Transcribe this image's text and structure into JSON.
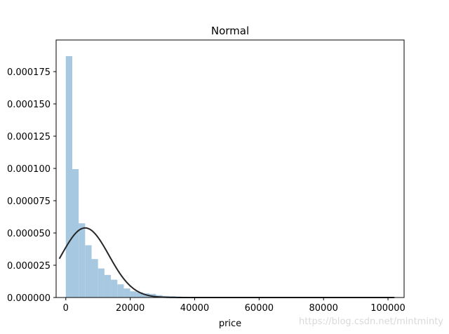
{
  "chart_data": {
    "type": "bar",
    "title": "Normal",
    "xlabel": "price",
    "ylabel": "",
    "xlim": [
      -3000,
      105000
    ],
    "ylim": [
      0,
      0.0001995
    ],
    "x_ticks": [
      0,
      20000,
      40000,
      60000,
      80000,
      100000
    ],
    "x_tick_labels": [
      "0",
      "20000",
      "40000",
      "60000",
      "80000",
      "100000"
    ],
    "y_ticks": [
      0,
      2.5e-05,
      5e-05,
      7.5e-05,
      0.0001,
      0.000125,
      0.00015,
      0.000175
    ],
    "y_tick_labels": [
      "0.000000",
      "0.000025",
      "0.000050",
      "0.000075",
      "0.000100",
      "0.000125",
      "0.000150",
      "0.000175"
    ],
    "histogram": {
      "color": "#a6c8e0",
      "bin_start": 0,
      "bin_width": 2000,
      "values": [
        0.000187,
        9.95e-05,
        5.75e-05,
        4.05e-05,
        2.98e-05,
        2.25e-05,
        1.75e-05,
        1.38e-05,
        1.02e-05,
        7e-06,
        4.8e-06,
        4e-06,
        3.2e-06,
        2.8e-06,
        1.8e-06,
        1.2e-06,
        1e-06,
        8e-07,
        6e-07,
        5e-07,
        4e-07,
        4e-07,
        3e-07,
        3e-07,
        2e-07,
        2e-07,
        2e-07,
        2e-07,
        1e-07,
        1e-07,
        1e-07,
        1e-07,
        1e-07,
        1e-07,
        1e-07,
        1e-07,
        1e-07,
        1e-07,
        1e-07,
        1e-07,
        1e-07,
        1e-07,
        1e-07,
        1e-07,
        1e-07,
        1e-07,
        1e-07,
        1e-07,
        1e-07,
        1e-07,
        1e-07
      ]
    },
    "normal_fit": {
      "color": "#262626",
      "mean": 6000,
      "std": 7400,
      "x_range": [
        -2000,
        102000
      ]
    },
    "grid": false
  },
  "watermark": "https://blog.csdn.net/mintminty"
}
